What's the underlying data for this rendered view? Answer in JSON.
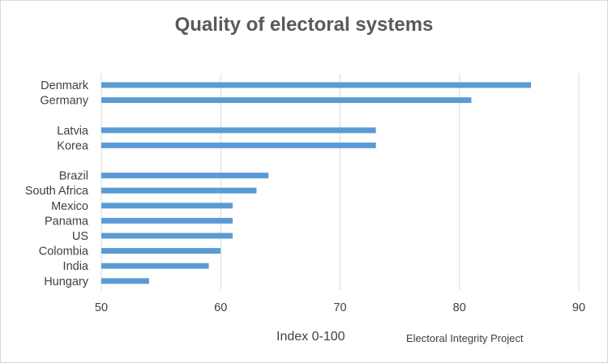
{
  "chart_data": {
    "type": "bar",
    "orientation": "horizontal",
    "title": "Quality of electoral systems",
    "xlabel": "Index 0-100",
    "source": "Electoral Integrity Project",
    "categories": [
      "Denmark",
      "Germany",
      "Latvia",
      "Korea",
      "Brazil",
      "South Africa",
      "Mexico",
      "Panama",
      "US",
      "Colombia",
      "India",
      "Hungary"
    ],
    "values": [
      86,
      81,
      73,
      73,
      64,
      63,
      61,
      61,
      61,
      60,
      59,
      54
    ],
    "gaps_after": [
      "Germany",
      "Korea"
    ],
    "xlim": [
      50,
      90
    ],
    "xticks": [
      50,
      60,
      70,
      80,
      90
    ],
    "grid": "vertical",
    "bar_color": "#5b9bd5",
    "grid_color": "#d9d9d9"
  }
}
